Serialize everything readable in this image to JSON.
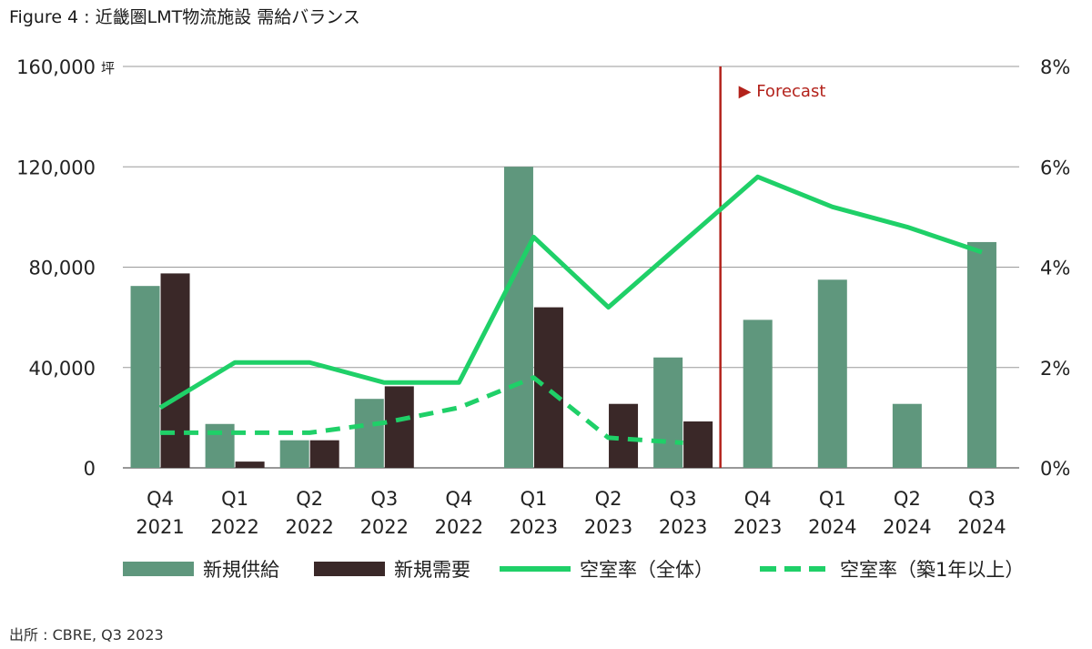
{
  "title": "Figure 4 : 近畿圏LMT物流施設 需給バランス",
  "source": "出所 : CBRE, Q3 2023",
  "colors": {
    "supply": "#5f977d",
    "demand": "#3a2828",
    "vacancy_all": "#1fd068",
    "vacancy_1yr": "#1fd068",
    "forecast": "#b3221b",
    "grid": "#9a9a9a"
  },
  "chart_data": {
    "type": "bar+line",
    "categories": [
      [
        "Q4",
        "2021"
      ],
      [
        "Q1",
        "2022"
      ],
      [
        "Q2",
        "2022"
      ],
      [
        "Q3",
        "2022"
      ],
      [
        "Q4",
        "2022"
      ],
      [
        "Q1",
        "2023"
      ],
      [
        "Q2",
        "2023"
      ],
      [
        "Q3",
        "2023"
      ],
      [
        "Q4",
        "2023"
      ],
      [
        "Q1",
        "2024"
      ],
      [
        "Q2",
        "2024"
      ],
      [
        "Q3",
        "2024"
      ]
    ],
    "left_axis": {
      "ticks": [
        "0",
        "40,000",
        "80,000",
        "120,000",
        "160,000"
      ],
      "unit": "坪",
      "ylim": [
        0,
        160000
      ]
    },
    "right_axis": {
      "ticks": [
        "0%",
        "2%",
        "4%",
        "6%",
        "8%"
      ],
      "ylim": [
        0,
        8
      ]
    },
    "series": [
      {
        "name": "新規供給",
        "kind": "bar",
        "axis": "left",
        "values": [
          72500,
          17500,
          11000,
          27500,
          0,
          120000,
          0,
          44000,
          59000,
          75000,
          25500,
          90000
        ]
      },
      {
        "name": "新規需要",
        "kind": "bar",
        "axis": "left",
        "values": [
          77500,
          2500,
          11000,
          32500,
          0,
          64000,
          25500,
          18500,
          null,
          null,
          null,
          null
        ]
      },
      {
        "name": "空室率（全体）",
        "kind": "line",
        "axis": "right",
        "values": [
          1.2,
          2.1,
          2.1,
          1.7,
          1.7,
          4.6,
          3.2,
          4.5,
          5.8,
          5.2,
          4.8,
          4.3
        ]
      },
      {
        "name": "空室率（築1年以上）",
        "kind": "line-dashed",
        "axis": "right",
        "values": [
          0.7,
          0.7,
          0.7,
          0.9,
          1.2,
          1.8,
          0.6,
          0.5,
          null,
          null,
          null,
          null
        ]
      }
    ],
    "forecast_label": "▶ Forecast",
    "forecast_after_index": 7,
    "grid": true,
    "legend_position": "bottom"
  }
}
